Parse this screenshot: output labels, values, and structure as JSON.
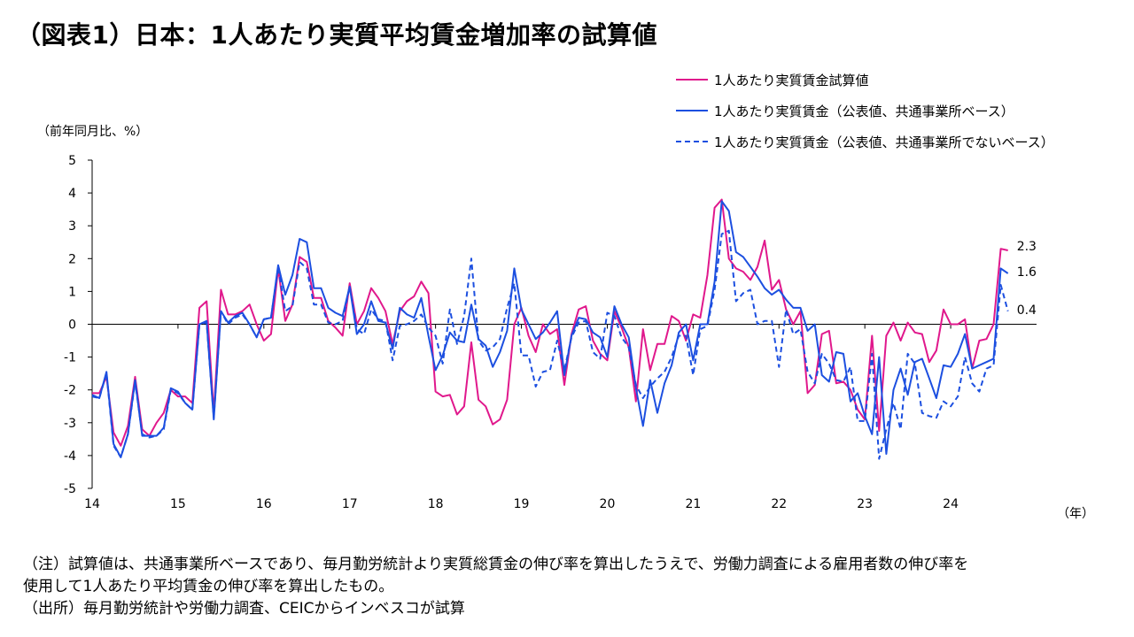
{
  "title": "（図表1）日本：1人あたり実質平均賃金増加率の試算値",
  "notes": [
    "（注）試算値は、共通事業所ベースであり、毎月勤労統計より実質総賃金の伸び率を算出したうえで、労働力調査による雇用者数の伸び率を",
    "使用して1人あたり平均賃金の伸び率を算出したもの。",
    "（出所）毎月勤労統計や労働力調査、CEICからインベスコが試算"
  ],
  "chart_data": {
    "type": "line",
    "ylabel": "（前年同月比、%）",
    "xlabel": "（年）",
    "ylim": [
      -5,
      5
    ],
    "yticks": [
      5,
      4,
      3,
      2,
      1,
      0,
      -1,
      -2,
      -3,
      -4,
      -5
    ],
    "xlim": [
      14,
      25
    ],
    "xticks": [
      "14",
      "15",
      "16",
      "17",
      "18",
      "19",
      "20",
      "21",
      "22",
      "23",
      "24"
    ],
    "grid": false,
    "legend_position": "top-right",
    "x_start": 14,
    "end_labels": [
      {
        "series": 0,
        "text": "2.3"
      },
      {
        "series": 1,
        "text": "1.6"
      },
      {
        "series": 2,
        "text": "0.4"
      }
    ],
    "series": [
      {
        "name": "1人あたり実質賃金試算値",
        "color": "#e0188c",
        "style": "solid",
        "values": [
          -2.1,
          -2.1,
          -1.6,
          -3.3,
          -3.7,
          -3.1,
          -1.6,
          -3.2,
          -3.4,
          -3.0,
          -2.7,
          -2.0,
          -2.2,
          -2.2,
          -2.4,
          0.5,
          0.7,
          -2.7,
          1.05,
          0.3,
          0.3,
          0.4,
          0.6,
          0.0,
          -0.5,
          -0.3,
          1.7,
          0.1,
          0.6,
          2.05,
          1.9,
          0.8,
          0.8,
          0.1,
          -0.1,
          -0.35,
          1.25,
          0.0,
          0.4,
          1.1,
          0.8,
          0.4,
          -0.6,
          0.4,
          0.7,
          0.85,
          1.3,
          0.95,
          -2.05,
          -2.2,
          -2.15,
          -2.75,
          -2.5,
          -0.55,
          -2.3,
          -2.5,
          -3.05,
          -2.9,
          -2.3,
          0.0,
          0.5,
          -0.35,
          -0.85,
          0.0,
          -0.3,
          -0.15,
          -1.85,
          -0.3,
          0.45,
          0.55,
          -0.5,
          -0.9,
          -1.1,
          0.4,
          -0.1,
          -0.7,
          -2.35,
          -0.15,
          -1.4,
          -0.6,
          -0.6,
          0.25,
          0.1,
          -0.5,
          0.3,
          0.2,
          1.5,
          3.55,
          3.8,
          2.0,
          1.7,
          1.6,
          1.35,
          1.75,
          2.55,
          1.05,
          1.35,
          0.45,
          0.0,
          0.4,
          -2.1,
          -1.85,
          -0.3,
          -0.2,
          -1.8,
          -1.75,
          -2.0,
          -2.6,
          -2.9,
          -0.35,
          -3.25,
          -0.35,
          0.05,
          -0.5,
          0.05,
          -0.25,
          -0.3,
          -1.15,
          -0.8,
          0.45,
          0.0,
          0.0,
          0.15,
          -1.35,
          -0.5,
          -0.45,
          0.0,
          2.3,
          2.25
        ]
      },
      {
        "name": "1人あたり実質賃金（公表値、共通事業所ベース）",
        "color": "#1c4fe0",
        "style": "solid",
        "values": [
          -2.15,
          -2.25,
          -1.45,
          -3.65,
          -4.05,
          -3.35,
          -1.7,
          -3.4,
          -3.4,
          -3.4,
          -3.15,
          -1.95,
          -2.05,
          -2.4,
          -2.6,
          0.0,
          0.1,
          -2.9,
          0.4,
          0.05,
          0.25,
          0.35,
          0.0,
          -0.4,
          0.15,
          0.2,
          1.8,
          0.9,
          1.5,
          2.6,
          2.5,
          1.1,
          1.1,
          0.5,
          0.35,
          0.25,
          1.15,
          -0.3,
          0.0,
          0.7,
          0.1,
          0.05,
          -0.75,
          0.5,
          0.3,
          0.2,
          0.8,
          -0.35,
          -1.4,
          -0.95,
          -0.25,
          -0.5,
          -0.55,
          0.6,
          -0.45,
          -0.65,
          -1.3,
          -0.85,
          -0.2,
          1.7,
          0.45,
          0.0,
          -0.45,
          -0.25,
          0.05,
          0.4,
          -1.55,
          -0.35,
          0.2,
          0.15,
          -0.25,
          -0.4,
          -1.0,
          0.55,
          0.0,
          -0.4,
          -1.95,
          -3.1,
          -1.7,
          -2.7,
          -1.8,
          -1.25,
          -0.25,
          0.0,
          -1.1,
          0.0,
          0.0,
          1.3,
          3.75,
          3.45,
          2.2,
          2.05,
          1.75,
          1.45,
          1.1,
          0.9,
          1.05,
          0.75,
          0.5,
          0.5,
          -0.2,
          0.0,
          -1.55,
          -1.75,
          -0.85,
          -0.9,
          -2.35,
          -2.1,
          -2.8,
          -3.35,
          -1.0,
          -3.95,
          -2.0,
          -1.35,
          -2.15,
          -1.15,
          -1.05,
          -1.65,
          -2.25,
          -1.25,
          -1.3,
          -0.9,
          -0.3,
          -1.35,
          -1.25,
          -1.15,
          -1.05,
          1.7,
          1.55
        ]
      },
      {
        "name": "1人あたり実質賃金（公表値、共通事業所でないベース）",
        "color": "#1c4fe0",
        "style": "dashed",
        "values": [
          -2.2,
          -2.25,
          -1.5,
          -3.7,
          -4.05,
          -3.35,
          -1.75,
          -3.35,
          -3.45,
          -3.4,
          -3.2,
          -2.0,
          -2.1,
          -2.4,
          -2.6,
          0.0,
          0.05,
          -2.85,
          0.4,
          0.0,
          0.2,
          0.3,
          0.0,
          -0.4,
          0.15,
          0.2,
          1.75,
          0.4,
          0.55,
          1.9,
          1.7,
          0.6,
          0.6,
          0.05,
          0.0,
          0.1,
          1.15,
          -0.15,
          -0.3,
          0.45,
          0.15,
          0.1,
          -1.1,
          -0.05,
          0.0,
          0.1,
          0.3,
          -0.1,
          -0.35,
          -1.2,
          0.45,
          -0.6,
          0.25,
          2.0,
          -0.5,
          -0.8,
          -0.7,
          -0.45,
          0.5,
          1.25,
          -0.95,
          -0.95,
          -1.9,
          -1.45,
          -1.4,
          -0.5,
          -1.4,
          -0.4,
          0.05,
          0.1,
          -0.85,
          -1.05,
          0.35,
          0.25,
          -0.4,
          -0.7,
          -1.85,
          -2.25,
          -1.9,
          -1.65,
          -1.45,
          -1.0,
          -0.35,
          -0.35,
          -1.55,
          -0.15,
          -0.05,
          1.05,
          2.75,
          2.85,
          0.7,
          0.95,
          1.05,
          0.0,
          0.1,
          0.1,
          -1.3,
          0.45,
          -0.3,
          -0.15,
          -1.45,
          -1.8,
          -0.9,
          -1.2,
          -1.7,
          -1.75,
          -1.3,
          -2.95,
          -2.95,
          -0.9,
          -4.1,
          -3.2,
          -2.4,
          -3.2,
          -0.9,
          -1.2,
          -2.7,
          -2.8,
          -2.85,
          -2.35,
          -2.5,
          -2.2,
          -1.0,
          -1.8,
          -2.05,
          -1.35,
          -1.25,
          1.2,
          0.4
        ]
      }
    ]
  }
}
